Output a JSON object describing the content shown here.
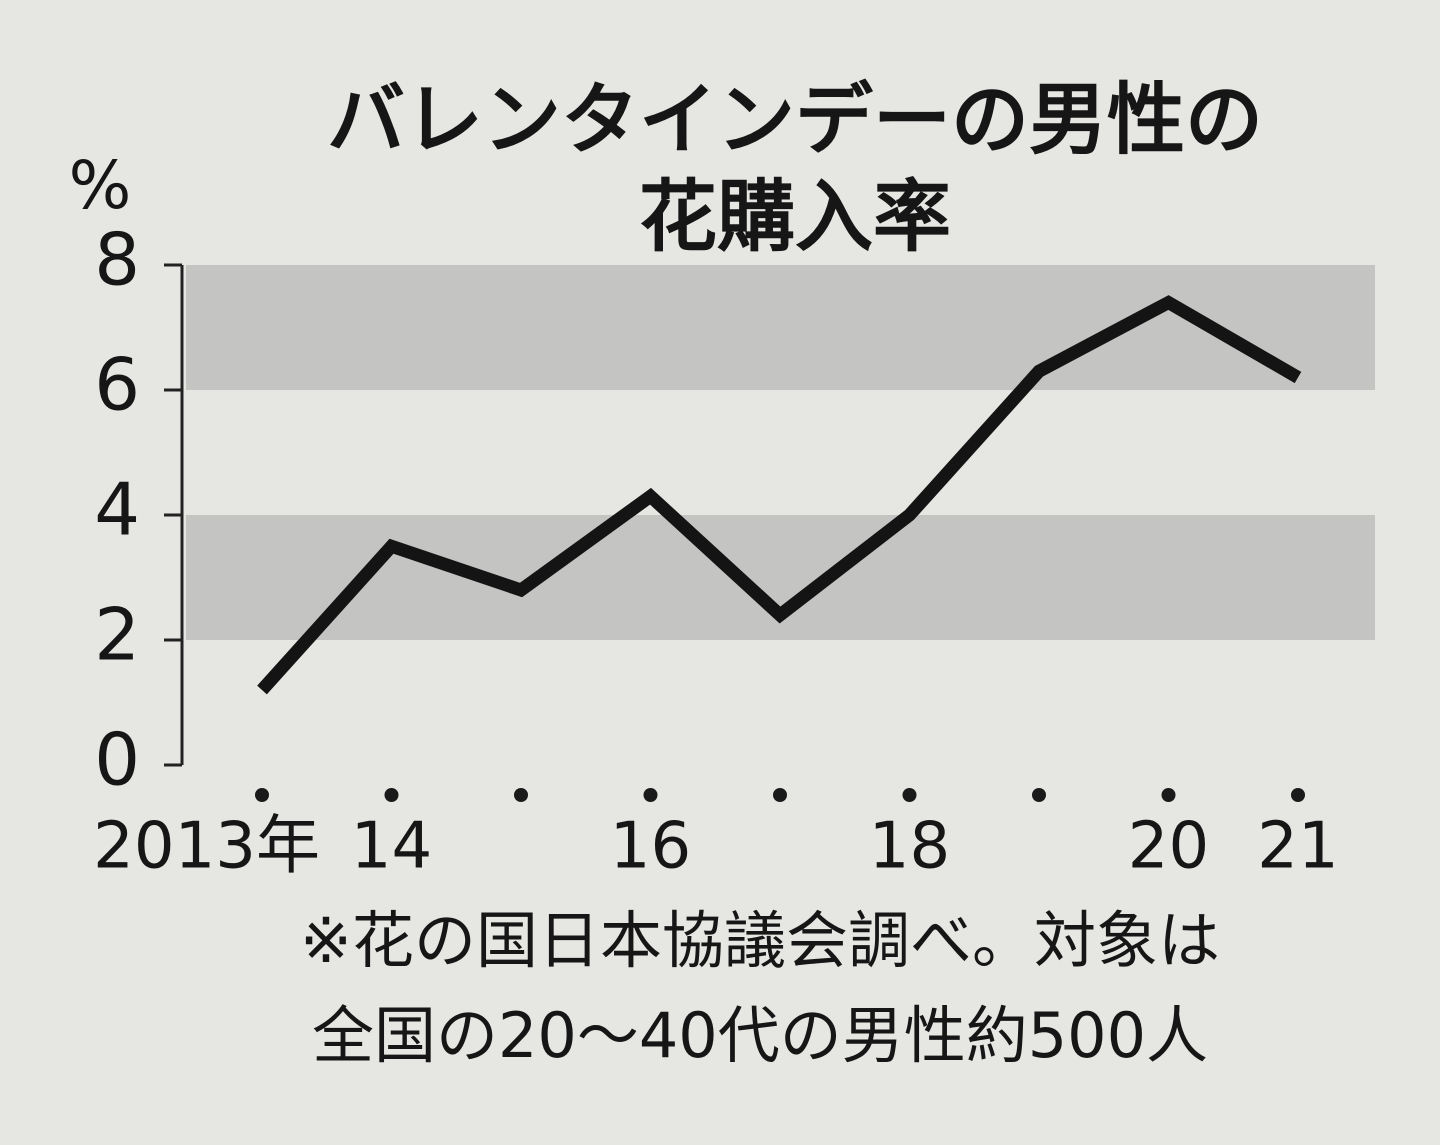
{
  "chart_data": {
    "type": "line",
    "title": [
      "バレンタインデーの男性の",
      "花購入率"
    ],
    "y_unit": "%",
    "categories": [
      "2013年",
      "14",
      null,
      "16",
      null,
      "18",
      null,
      "20",
      "21"
    ],
    "series": [
      {
        "name": "男性の花購入率",
        "color": "#141414",
        "values": [
          1.2,
          3.5,
          2.8,
          4.3,
          2.4,
          4.0,
          6.3,
          7.4,
          6.2
        ]
      }
    ],
    "ylim": [
      0,
      8
    ],
    "yticks": [
      0,
      2,
      4,
      6,
      8
    ],
    "banded": true,
    "note": [
      "※花の国日本協議会調べ。対象は",
      "全国の20～40代の男性約500人"
    ]
  }
}
